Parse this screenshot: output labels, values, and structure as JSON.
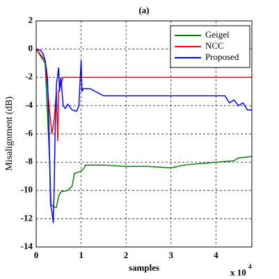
{
  "chart_data": {
    "type": "line",
    "title": "(a)",
    "x_label": "samples",
    "y_label": "Misalignment (dB)",
    "x_multiplier": "x 10",
    "x_multiplier_exponent": "4",
    "xlim": [
      0,
      4.8
    ],
    "xticks": [
      0,
      1,
      2,
      3,
      4
    ],
    "ylim": [
      -14,
      2
    ],
    "yticks": [
      -14,
      -12,
      -10,
      -8,
      -6,
      -4,
      -2,
      0,
      2
    ],
    "grid": true,
    "legend": "upper right",
    "series": [
      {
        "name": "Geigel",
        "color": "#008000",
        "x": [
          0,
          0.2,
          0.3,
          0.33,
          0.4,
          0.45,
          0.5,
          0.55,
          0.7,
          0.8,
          0.85,
          0.95,
          1.05,
          1.1,
          1.5,
          2,
          2.5,
          3,
          3.3,
          4,
          4.4,
          4.5,
          4.8
        ],
        "values": [
          0,
          -1,
          -8,
          -11,
          -11.2,
          -11.2,
          -10.4,
          -10.1,
          -10,
          -9.7,
          -8.8,
          -8.7,
          -8.5,
          -8.2,
          -8.2,
          -8.3,
          -8.3,
          -8.4,
          -8.2,
          -8.0,
          -7.9,
          -7.7,
          -7.6
        ]
      },
      {
        "name": "NCC",
        "color": "#ff0000",
        "x": [
          0,
          0.2,
          0.3,
          0.35,
          0.4,
          0.45,
          0.48,
          0.5,
          0.55,
          0.6,
          4.8
        ],
        "values": [
          0,
          -0.8,
          -4.5,
          -6,
          -5,
          -3,
          -6.5,
          -3,
          -2.5,
          -2,
          -2
        ]
      },
      {
        "name": "Proposed",
        "color": "#0000ff",
        "x": [
          0,
          0.1,
          0.15,
          0.2,
          0.25,
          0.28,
          0.3,
          0.32,
          0.35,
          0.38,
          0.4,
          0.42,
          0.45,
          0.48,
          0.5,
          0.52,
          0.55,
          0.6,
          0.65,
          0.7,
          0.8,
          0.9,
          0.95,
          1.0,
          1.02,
          1.05,
          1.2,
          1.5,
          2,
          3,
          4.2,
          4.3,
          4.4,
          4.5,
          4.6,
          4.7,
          4.8
        ],
        "values": [
          0,
          -0.1,
          -0.3,
          -0.8,
          -2,
          -5,
          -8,
          -11,
          -11.5,
          -12.3,
          -10,
          -6,
          -2.5,
          -1.8,
          -1.3,
          -3,
          -2,
          -4,
          -4.2,
          -3.9,
          -4.3,
          -4.4,
          -4.0,
          -0.8,
          -3,
          -2.8,
          -2.8,
          -3.3,
          -3.3,
          -3.3,
          -3.3,
          -3.8,
          -3.6,
          -4,
          -3.8,
          -4.3,
          -4.3
        ]
      }
    ]
  }
}
